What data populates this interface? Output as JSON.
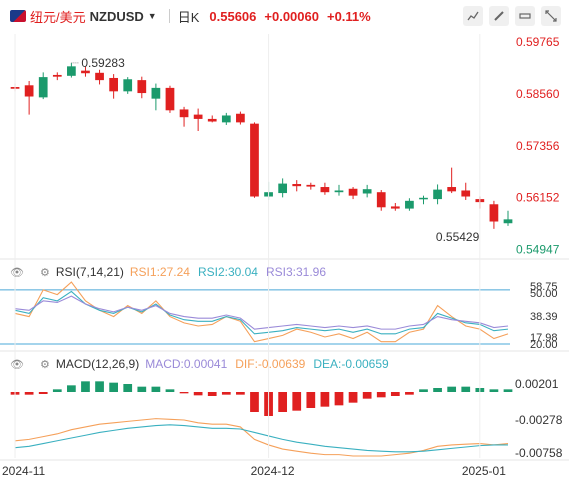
{
  "header": {
    "pair_cn": "纽元/美元",
    "pair": "NZDUSD",
    "caret": "▼",
    "period": "日K",
    "price": "0.55606",
    "change": "+0.00060",
    "change_pct": "+0.11%",
    "tools": [
      "chart-icon",
      "pencil-icon",
      "ruler-icon",
      "expand-icon"
    ]
  },
  "rsi": {
    "title": "RSI(7,14,21)",
    "rsi1": "RSI1:27.24",
    "rsi2": "RSI2:30.04",
    "rsi3": "RSI3:31.96",
    "levels": [
      "58.75",
      "50.00",
      "38.39",
      "17.98",
      "20.00"
    ]
  },
  "macd": {
    "title": "MACD(12,26,9)",
    "macd_label": "MACD:0.00041",
    "dif_label": "DIF:-0.00639",
    "dea_label": "DEA:-0.00659",
    "axis": [
      "0.00201",
      "-0.00278",
      "-0.00758"
    ]
  },
  "colors": {
    "up": "#e02020",
    "down": "#1b9a6c",
    "rsi1": "#f5a05a",
    "rsi2": "#3ab0c0",
    "rsi3": "#9a8ad8",
    "dif": "#f5a05a",
    "dea": "#3ab0c0",
    "guide": "#4aa8d8"
  },
  "chart_data": [
    {
      "type": "candlestick",
      "title": "NZDUSD",
      "y_ticks": [
        "0.59765",
        "0.58560",
        "0.57356",
        "0.56152",
        "0.54947"
      ],
      "ylim": [
        0.548,
        0.5995
      ],
      "x_ticks": [
        "2024-11",
        "2024-12",
        "2025-01"
      ],
      "annotations": {
        "high": "0.59283",
        "low": "0.55429"
      },
      "candles": [
        {
          "o": 0.5872,
          "h": 0.588,
          "l": 0.5862,
          "c": 0.5868,
          "dir": "up"
        },
        {
          "o": 0.5876,
          "h": 0.5886,
          "l": 0.5808,
          "c": 0.585,
          "dir": "up"
        },
        {
          "o": 0.5848,
          "h": 0.5906,
          "l": 0.5844,
          "c": 0.5895,
          "dir": "down"
        },
        {
          "o": 0.5896,
          "h": 0.5906,
          "l": 0.5888,
          "c": 0.59,
          "dir": "up"
        },
        {
          "o": 0.5898,
          "h": 0.5928,
          "l": 0.5894,
          "c": 0.592,
          "dir": "down"
        },
        {
          "o": 0.591,
          "h": 0.5919,
          "l": 0.5896,
          "c": 0.5904,
          "dir": "up"
        },
        {
          "o": 0.5905,
          "h": 0.5912,
          "l": 0.5878,
          "c": 0.5888,
          "dir": "up"
        },
        {
          "o": 0.5893,
          "h": 0.5902,
          "l": 0.5845,
          "c": 0.5862,
          "dir": "up"
        },
        {
          "o": 0.5862,
          "h": 0.5895,
          "l": 0.5856,
          "c": 0.589,
          "dir": "down"
        },
        {
          "o": 0.5888,
          "h": 0.5896,
          "l": 0.5846,
          "c": 0.5858,
          "dir": "up"
        },
        {
          "o": 0.5845,
          "h": 0.588,
          "l": 0.5818,
          "c": 0.587,
          "dir": "down"
        },
        {
          "o": 0.587,
          "h": 0.5875,
          "l": 0.5812,
          "c": 0.5818,
          "dir": "up"
        },
        {
          "o": 0.582,
          "h": 0.5826,
          "l": 0.578,
          "c": 0.5802,
          "dir": "up"
        },
        {
          "o": 0.5808,
          "h": 0.5822,
          "l": 0.577,
          "c": 0.5798,
          "dir": "up"
        },
        {
          "o": 0.5798,
          "h": 0.5806,
          "l": 0.579,
          "c": 0.5792,
          "dir": "up"
        },
        {
          "o": 0.579,
          "h": 0.5812,
          "l": 0.5784,
          "c": 0.5806,
          "dir": "down"
        },
        {
          "o": 0.581,
          "h": 0.5815,
          "l": 0.5785,
          "c": 0.579,
          "dir": "up"
        },
        {
          "o": 0.5787,
          "h": 0.579,
          "l": 0.5615,
          "c": 0.5618,
          "dir": "up"
        },
        {
          "o": 0.5618,
          "h": 0.5652,
          "l": 0.561,
          "c": 0.5628,
          "dir": "down"
        },
        {
          "o": 0.5626,
          "h": 0.566,
          "l": 0.5616,
          "c": 0.5648,
          "dir": "down"
        },
        {
          "o": 0.5647,
          "h": 0.5656,
          "l": 0.563,
          "c": 0.5642,
          "dir": "up"
        },
        {
          "o": 0.5645,
          "h": 0.565,
          "l": 0.5634,
          "c": 0.5641,
          "dir": "up"
        },
        {
          "o": 0.564,
          "h": 0.565,
          "l": 0.5622,
          "c": 0.5628,
          "dir": "up"
        },
        {
          "o": 0.5628,
          "h": 0.5645,
          "l": 0.562,
          "c": 0.5632,
          "dir": "down"
        },
        {
          "o": 0.5636,
          "h": 0.564,
          "l": 0.5612,
          "c": 0.562,
          "dir": "up"
        },
        {
          "o": 0.5625,
          "h": 0.5645,
          "l": 0.5616,
          "c": 0.5635,
          "dir": "down"
        },
        {
          "o": 0.5628,
          "h": 0.5633,
          "l": 0.5585,
          "c": 0.5593,
          "dir": "up"
        },
        {
          "o": 0.5595,
          "h": 0.5603,
          "l": 0.5585,
          "c": 0.559,
          "dir": "up"
        },
        {
          "o": 0.559,
          "h": 0.5614,
          "l": 0.5585,
          "c": 0.5608,
          "dir": "down"
        },
        {
          "o": 0.5615,
          "h": 0.562,
          "l": 0.56,
          "c": 0.5612,
          "dir": "down"
        },
        {
          "o": 0.5612,
          "h": 0.5646,
          "l": 0.56,
          "c": 0.5634,
          "dir": "down"
        },
        {
          "o": 0.564,
          "h": 0.5685,
          "l": 0.5626,
          "c": 0.563,
          "dir": "up"
        },
        {
          "o": 0.5632,
          "h": 0.565,
          "l": 0.561,
          "c": 0.5618,
          "dir": "up"
        },
        {
          "o": 0.5612,
          "h": 0.5618,
          "l": 0.559,
          "c": 0.5605,
          "dir": "up"
        },
        {
          "o": 0.56,
          "h": 0.5608,
          "l": 0.5543,
          "c": 0.556,
          "dir": "up"
        },
        {
          "o": 0.5556,
          "h": 0.5585,
          "l": 0.555,
          "c": 0.5565,
          "dir": "down"
        }
      ]
    },
    {
      "type": "line",
      "title": "RSI(7,14,21)",
      "ylim": [
        17.98,
        58.75
      ],
      "series": [
        {
          "name": "RSI1",
          "values": [
            40,
            38,
            55,
            52,
            60,
            48,
            42,
            38,
            45,
            40,
            48,
            38,
            34,
            32,
            33,
            38,
            35,
            22,
            24,
            26,
            30,
            28,
            25,
            27,
            24,
            28,
            22,
            22,
            28,
            30,
            45,
            38,
            32,
            30,
            24,
            27
          ]
        },
        {
          "name": "RSI2",
          "values": [
            42,
            40,
            50,
            48,
            54,
            46,
            42,
            40,
            44,
            41,
            46,
            39,
            36,
            35,
            35,
            38,
            36,
            27,
            28,
            29,
            31,
            30,
            29,
            30,
            28,
            30,
            27,
            27,
            30,
            31,
            40,
            37,
            34,
            33,
            29,
            30
          ]
        },
        {
          "name": "RSI3",
          "values": [
            43,
            42,
            48,
            47,
            51,
            46,
            43,
            41,
            44,
            42,
            45,
            40,
            38,
            37,
            37,
            39,
            37,
            30,
            31,
            32,
            33,
            32,
            31,
            32,
            31,
            32,
            30,
            30,
            32,
            33,
            38,
            36,
            35,
            34,
            31,
            32
          ]
        }
      ]
    },
    {
      "type": "bar",
      "title": "MACD(12,26,9)",
      "ylim": [
        -0.008,
        0.0035
      ],
      "series": [
        {
          "name": "MACD",
          "values": [
            -0.0004,
            -0.0004,
            -0.0003,
            0.0004,
            0.001,
            0.0016,
            0.0016,
            0.0014,
            0.0012,
            0.0008,
            0.0008,
            0.0004,
            -0.0002,
            -0.0005,
            -0.0006,
            -0.0004,
            -0.0004,
            -0.003,
            -0.0036,
            -0.003,
            -0.0028,
            -0.0024,
            -0.0022,
            -0.002,
            -0.0016,
            -0.001,
            -0.0008,
            -0.0006,
            -0.0004,
            0.0004,
            0.0006,
            0.0008,
            0.0008,
            0.0006,
            0.0004,
            0.0004
          ]
        },
        {
          "name": "DIF",
          "values": [
            -0.006,
            -0.0058,
            -0.0054,
            -0.005,
            -0.0044,
            -0.004,
            -0.0036,
            -0.0034,
            -0.0032,
            -0.003,
            -0.0028,
            -0.0029,
            -0.003,
            -0.0034,
            -0.0036,
            -0.0036,
            -0.004,
            -0.0058,
            -0.0066,
            -0.0072,
            -0.0075,
            -0.0078,
            -0.008,
            -0.008,
            -0.0082,
            -0.0082,
            -0.0082,
            -0.008,
            -0.0078,
            -0.0074,
            -0.0068,
            -0.0066,
            -0.0065,
            -0.0064,
            -0.0066,
            -0.0064
          ]
        },
        {
          "name": "DEA",
          "values": [
            -0.007,
            -0.0068,
            -0.0064,
            -0.006,
            -0.0056,
            -0.0052,
            -0.0048,
            -0.0045,
            -0.0042,
            -0.004,
            -0.0038,
            -0.0037,
            -0.0038,
            -0.004,
            -0.0042,
            -0.0042,
            -0.0043,
            -0.0048,
            -0.0053,
            -0.0058,
            -0.0062,
            -0.0065,
            -0.0068,
            -0.007,
            -0.0072,
            -0.0074,
            -0.0075,
            -0.0076,
            -0.0076,
            -0.0075,
            -0.0073,
            -0.0071,
            -0.0069,
            -0.0067,
            -0.0066,
            -0.0066
          ]
        }
      ]
    }
  ]
}
